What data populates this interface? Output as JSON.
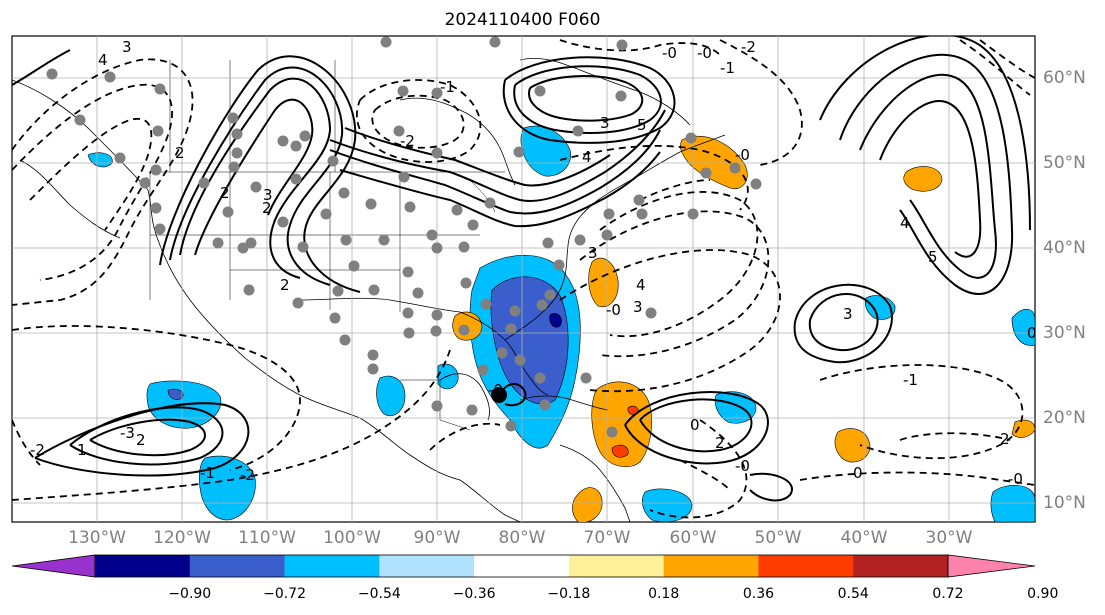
{
  "title": "2024110400 F060",
  "map": {
    "lon_labels": [
      "130°W",
      "120°W",
      "110°W",
      "100°W",
      "90°W",
      "80°W",
      "70°W",
      "60°W",
      "50°W",
      "40°W",
      "30°W"
    ],
    "lat_labels": [
      "60°N",
      "50°N",
      "40°N",
      "30°N",
      "20°N",
      "10°N"
    ],
    "contour_labels": [
      "4",
      "3",
      "2",
      "2",
      "2",
      "-2",
      "-1",
      "3",
      "4",
      "5",
      "-0",
      "-2",
      "-0",
      "-1",
      "-0",
      "2",
      "3",
      "3",
      "-0",
      "4",
      "3",
      "4",
      "5",
      "3",
      "-3",
      "2",
      "1",
      "-2",
      "0",
      "2",
      "-0",
      "0",
      "-1",
      "2",
      "0",
      "-0",
      "-1",
      "-2",
      "-0"
    ]
  },
  "colorbar": {
    "ticks": [
      "−0.90",
      "−0.72",
      "−0.54",
      "−0.36",
      "−0.18",
      "0.18",
      "0.36",
      "0.54",
      "0.72",
      "0.90"
    ],
    "colors": [
      "#9932cc",
      "#00008b",
      "#3a5fcd",
      "#00bfff",
      "#b0e2ff",
      "#ffffff",
      "#fff09a",
      "#ffa500",
      "#ff3c00",
      "#b22222",
      "#ff82ab"
    ]
  }
}
